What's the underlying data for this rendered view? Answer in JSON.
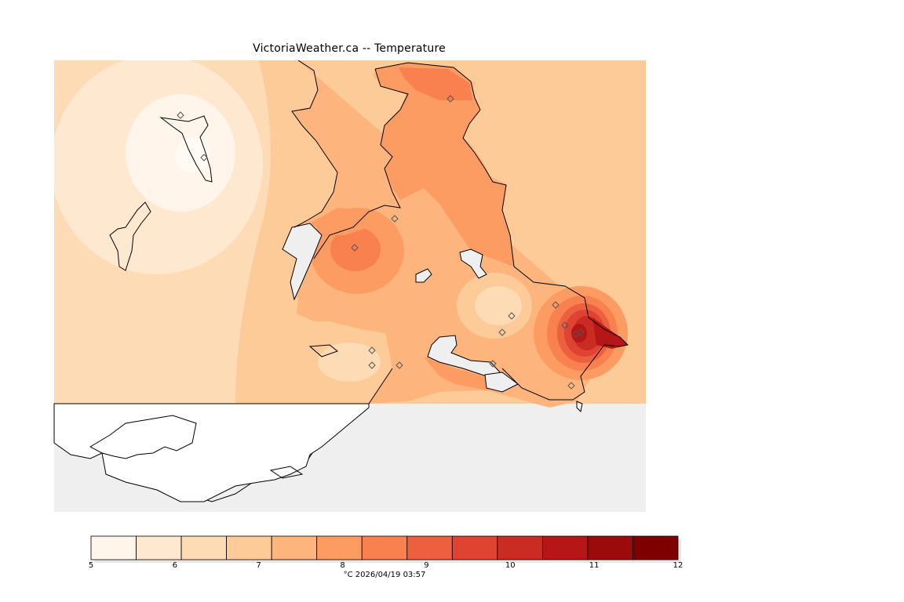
{
  "map": {
    "title": "VictoriaWeather.ca  -- Temperature",
    "colorbar_ticks": [
      "5",
      "6",
      "7",
      "8",
      "9",
      "10",
      "11",
      "12"
    ],
    "colorbar_colors": [
      "#fff5eb",
      "#fee8cf",
      "#fddbb4",
      "#fdcb97",
      "#fdb57d",
      "#fd9c62",
      "#f9804f",
      "#ec6040",
      "#de4431",
      "#ca2b23",
      "#b71616",
      "#9c0b0b",
      "#7f0000"
    ],
    "caption": "°C  2026/04/19 03:57",
    "colors": {
      "sea": "#efefef",
      "land_nodata": "#ffffff",
      "field_base": "#fdcb97"
    },
    "stations_count": 16
  }
}
